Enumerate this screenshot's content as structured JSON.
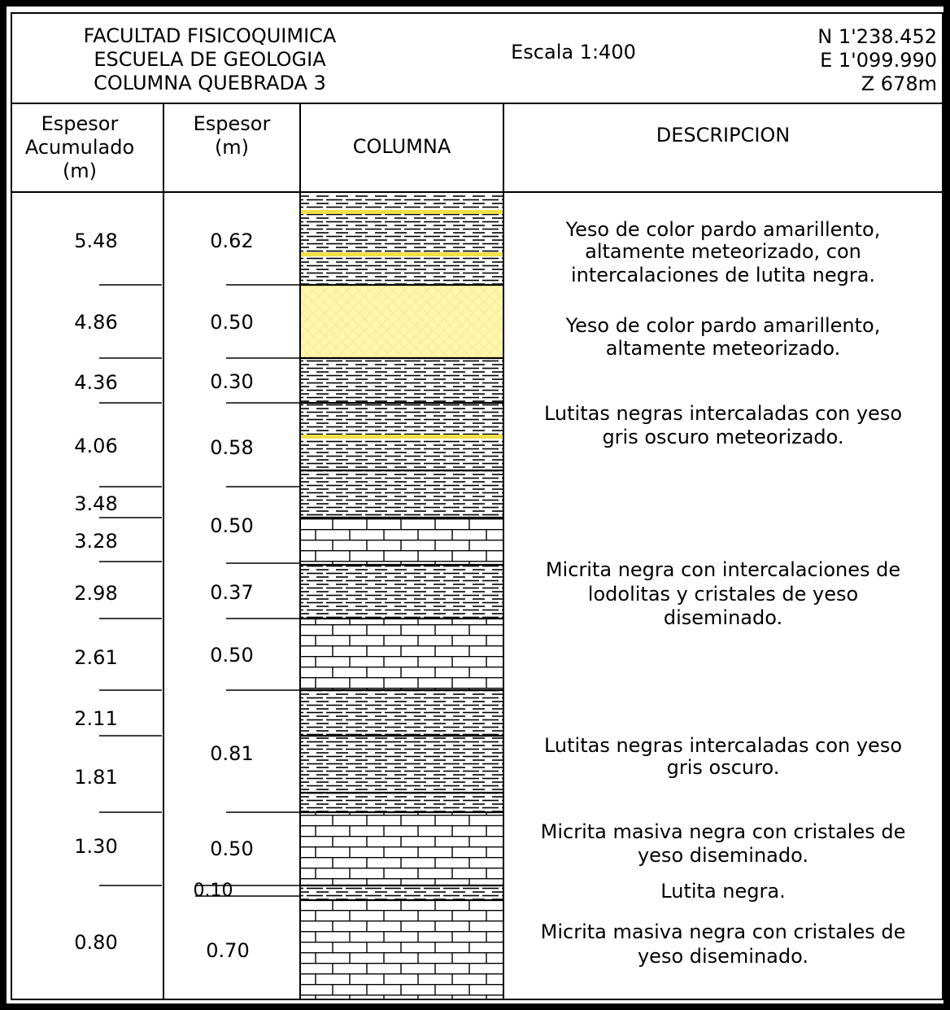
{
  "header": {
    "institution": [
      "FACULTAD FISICOQUIMICA",
      "ESCUELA DE GEOLOGIA",
      "COLUMNA QUEBRADA 3"
    ],
    "scale": "Escala 1:400",
    "coords": [
      "N 1'238.452",
      "E 1'099.990",
      "Z 678m"
    ]
  },
  "columns": {
    "accumulated": [
      "Espesor",
      "Acumulado",
      "(m)"
    ],
    "thickness": [
      "Espesor",
      "(m)"
    ],
    "column": "COLUMNA",
    "description": "DESCRIPCION"
  },
  "accumulated_values": [
    "5.48",
    "4.86",
    "4.36",
    "4.06",
    "3.48",
    "3.28",
    "2.98",
    "2.61",
    "2.11",
    "1.81",
    "1.30",
    "0.80"
  ],
  "thickness_values": [
    "0.62",
    "0.50",
    "0.30",
    "0.58",
    "0.50",
    "0.37",
    "0.50",
    "0.81",
    "0.50",
    "0.10",
    "0.70"
  ],
  "descriptions": [
    [
      "Yeso de color pardo amarillento,",
      "altamente meteorizado, con",
      "intercalaciones de lutita negra."
    ],
    [
      "Yeso de color pardo amarillento,",
      "altamente meteorizado."
    ],
    [
      "Lutitas negras intercaladas con yeso",
      "gris oscuro meteorizado."
    ],
    [
      "Micrita negra con intercalaciones de",
      "lodolitas y cristales de yeso",
      "diseminado."
    ],
    [
      "Lutitas negras intercaladas con yeso",
      "gris oscuro."
    ],
    [
      "Micrita masiva negra con cristales de",
      "yeso diseminado."
    ],
    [
      "Lutita negra."
    ],
    [
      "Micrita masiva negra con cristales de",
      "yeso diseminado."
    ]
  ],
  "colors": {
    "gypsum": "#fff7a8",
    "gypsum_band": "#f2e04a",
    "ink": "#000000"
  }
}
